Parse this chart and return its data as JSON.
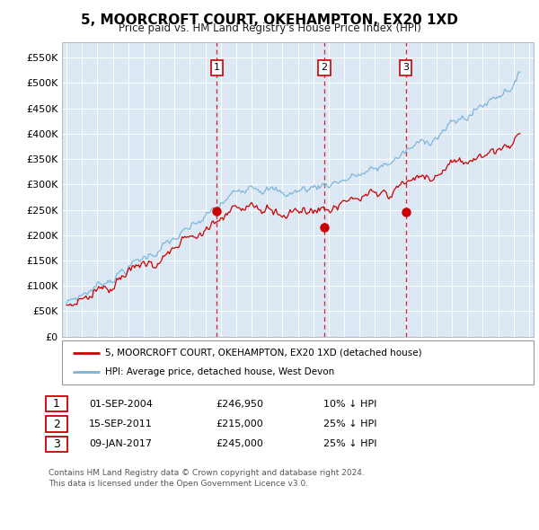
{
  "title": "5, MOORCROFT COURT, OKEHAMPTON, EX20 1XD",
  "subtitle": "Price paid vs. HM Land Registry's House Price Index (HPI)",
  "ytick_values": [
    0,
    50000,
    100000,
    150000,
    200000,
    250000,
    300000,
    350000,
    400000,
    450000,
    500000,
    550000
  ],
  "ylim": [
    0,
    580000
  ],
  "hpi_color": "#7ab3d9",
  "price_color": "#cc0000",
  "vline_color": "#cc0000",
  "sale_date_nums": [
    2004.75,
    2011.708,
    2017.0
  ],
  "sale_prices": [
    246950,
    215000,
    245000
  ],
  "sale_labels": [
    "1",
    "2",
    "3"
  ],
  "legend_entries": [
    "5, MOORCROFT COURT, OKEHAMPTON, EX20 1XD (detached house)",
    "HPI: Average price, detached house, West Devon"
  ],
  "table_rows": [
    [
      "1",
      "01-SEP-2004",
      "£246,950",
      "10% ↓ HPI"
    ],
    [
      "2",
      "15-SEP-2011",
      "£215,000",
      "25% ↓ HPI"
    ],
    [
      "3",
      "09-JAN-2017",
      "£245,000",
      "25% ↓ HPI"
    ]
  ],
  "footnote": "Contains HM Land Registry data © Crown copyright and database right 2024.\nThis data is licensed under the Open Government Licence v3.0.",
  "plot_bg_color": "#dce9f5",
  "fig_bg_color": "#ffffff",
  "grid_color": "#ffffff",
  "xlim_left": 1994.7,
  "xlim_right": 2025.3
}
